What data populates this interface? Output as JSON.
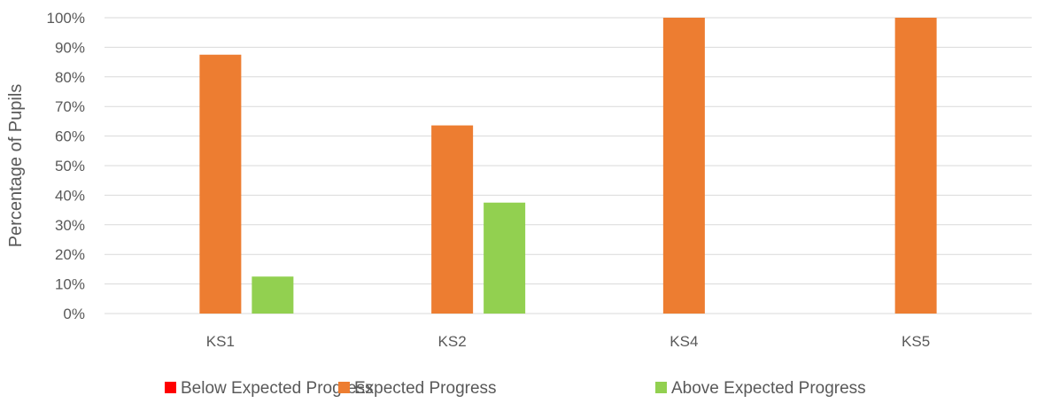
{
  "chart_data": {
    "type": "bar",
    "title": "",
    "xlabel": "",
    "ylabel": "Percentage of Pupils",
    "categories": [
      "KS1",
      "KS2",
      "KS4",
      "KS5"
    ],
    "series": [
      {
        "name": "Below Expected Progress",
        "color": "#ff0000",
        "values": [
          0,
          0,
          0,
          0
        ]
      },
      {
        "name": "Expected Progress",
        "color": "#ed7d31",
        "values": [
          87.5,
          63.6,
          100,
          100
        ]
      },
      {
        "name": "Above Expected Progress",
        "color": "#92d050",
        "values": [
          12.5,
          37.5,
          0,
          0
        ]
      }
    ],
    "ylim": [
      0,
      100
    ],
    "yticks": [
      "0%",
      "10%",
      "20%",
      "30%",
      "40%",
      "50%",
      "60%",
      "70%",
      "80%",
      "90%",
      "100%"
    ],
    "grid": true,
    "legend": "bottom"
  }
}
